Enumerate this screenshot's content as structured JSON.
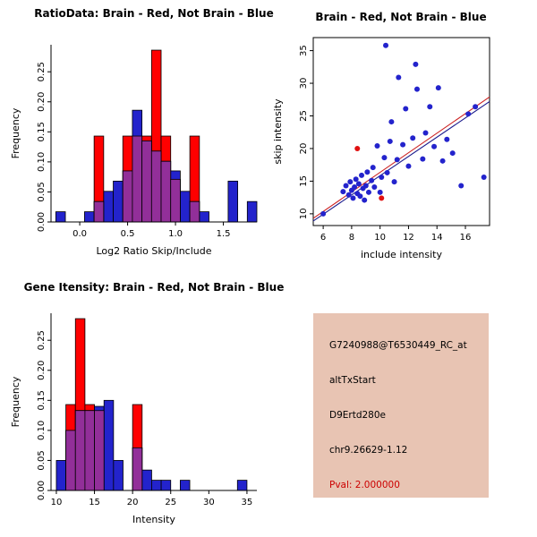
{
  "info_panel": {
    "lines": [
      "G7240988@T6530449_RC_at",
      "altTxStart",
      "D9Ertd280e",
      "chr9.26629-1.12"
    ],
    "pval": "Pval: 2.000000",
    "bg_color": "#e8c4b3",
    "pval_color": "#cc0000",
    "text_color": "#000000"
  },
  "chart_data": [
    {
      "type": "bar",
      "variant": "overlaid-histogram",
      "title": "RatioData: Brain - Red, Not Brain - Blue",
      "xlabel": "Log2 Ratio Skip/Include",
      "ylabel": "Frequency",
      "bin_start": -0.25,
      "bin_width": 0.1,
      "xlim": [
        -0.3,
        1.85
      ],
      "ylim": [
        0,
        0.295
      ],
      "xticks": [
        0,
        0.5,
        1,
        1.5
      ],
      "xtick_labels": [
        "0.0",
        "0.5",
        "1.0",
        "1.5"
      ],
      "yticks": [
        0,
        0.05,
        0.1,
        0.15,
        0.2,
        0.25
      ],
      "ytick_labels": [
        "0.00",
        "0.05",
        "0.10",
        "0.15",
        "0.20",
        "0.25"
      ],
      "overlap_color": "#922f99",
      "grid": false,
      "legend": "none",
      "series": [
        {
          "name": "Brain",
          "color": "#ff0000",
          "values": [
            0,
            0,
            0,
            0,
            0.143,
            0,
            0,
            0.143,
            0.143,
            0.143,
            0.286,
            0.143,
            0.071,
            0,
            0.143,
            0,
            0,
            0,
            0,
            0,
            0
          ]
        },
        {
          "name": "Not Brain",
          "color": "#2323cc",
          "values": [
            0.017,
            0,
            0,
            0.017,
            0.034,
            0.051,
            0.068,
            0.085,
            0.186,
            0.135,
            0.118,
            0.101,
            0.085,
            0.051,
            0.034,
            0.017,
            0,
            0,
            0.068,
            0,
            0.034
          ]
        }
      ]
    },
    {
      "type": "scatter",
      "title": "Brain - Red, Not Brain - Blue",
      "xlabel": "include intensity",
      "ylabel": "skip intensity",
      "xlim": [
        5.3,
        17.7
      ],
      "ylim": [
        8.2,
        37
      ],
      "xticks": [
        6,
        8,
        10,
        12,
        14,
        16
      ],
      "xtick_labels": [
        "6",
        "8",
        "10",
        "12",
        "14",
        "16"
      ],
      "yticks": [
        10,
        15,
        20,
        25,
        30,
        35
      ],
      "ytick_labels": [
        "10",
        "15",
        "20",
        "25",
        "30",
        "35"
      ],
      "grid": false,
      "legend": "none",
      "series": [
        {
          "name": "Not Brain",
          "color": "#2323cc",
          "points": [
            [
              6.0,
              10.0
            ],
            [
              7.4,
              13.4
            ],
            [
              7.6,
              14.3
            ],
            [
              7.8,
              12.9
            ],
            [
              7.9,
              14.9
            ],
            [
              8.0,
              13.6
            ],
            [
              8.1,
              12.4
            ],
            [
              8.2,
              14.1
            ],
            [
              8.3,
              15.3
            ],
            [
              8.4,
              13.1
            ],
            [
              8.5,
              14.6
            ],
            [
              8.6,
              12.7
            ],
            [
              8.7,
              15.9
            ],
            [
              8.8,
              13.9
            ],
            [
              8.9,
              12.1
            ],
            [
              9.0,
              14.3
            ],
            [
              9.1,
              16.4
            ],
            [
              9.2,
              13.3
            ],
            [
              9.4,
              15.1
            ],
            [
              9.5,
              17.1
            ],
            [
              9.6,
              14.1
            ],
            [
              9.8,
              20.4
            ],
            [
              10.0,
              13.3
            ],
            [
              10.1,
              15.6
            ],
            [
              10.3,
              18.6
            ],
            [
              10.4,
              35.8
            ],
            [
              10.5,
              16.3
            ],
            [
              10.7,
              21.1
            ],
            [
              10.8,
              24.1
            ],
            [
              11.0,
              14.9
            ],
            [
              11.2,
              18.3
            ],
            [
              11.3,
              30.9
            ],
            [
              11.6,
              20.6
            ],
            [
              11.8,
              26.1
            ],
            [
              12.0,
              17.3
            ],
            [
              12.3,
              21.6
            ],
            [
              12.5,
              32.9
            ],
            [
              12.6,
              29.1
            ],
            [
              13.0,
              18.4
            ],
            [
              13.2,
              22.4
            ],
            [
              13.5,
              26.4
            ],
            [
              13.8,
              20.3
            ],
            [
              14.1,
              29.3
            ],
            [
              14.4,
              18.1
            ],
            [
              14.7,
              21.4
            ],
            [
              15.1,
              19.3
            ],
            [
              15.7,
              14.3
            ],
            [
              16.2,
              25.3
            ],
            [
              16.7,
              26.4
            ],
            [
              17.3,
              15.6
            ]
          ]
        },
        {
          "name": "Brain",
          "color": "#e01010",
          "points": [
            [
              8.4,
              20.0
            ],
            [
              10.1,
              12.4
            ]
          ]
        }
      ],
      "lines": [
        {
          "color": "#cc2020",
          "x1": 5.3,
          "y1": 9.3,
          "x2": 17.7,
          "y2": 27.9
        },
        {
          "color": "#1a1a8c",
          "x1": 5.3,
          "y1": 8.9,
          "x2": 17.7,
          "y2": 27.2
        }
      ]
    },
    {
      "type": "bar",
      "variant": "overlaid-histogram",
      "title": "Gene Itensity: Brain - Red, Not Brain - Blue",
      "xlabel": "Intensity",
      "ylabel": "Frequency",
      "bin_start": 10,
      "bin_width": 1.25,
      "xlim": [
        9.3,
        36.3
      ],
      "ylim": [
        0,
        0.295
      ],
      "xticks": [
        10,
        15,
        20,
        25,
        30,
        35
      ],
      "xtick_labels": [
        "10",
        "15",
        "20",
        "25",
        "30",
        "35"
      ],
      "yticks": [
        0,
        0.05,
        0.1,
        0.15,
        0.2,
        0.25
      ],
      "ytick_labels": [
        "0.00",
        "0.05",
        "0.10",
        "0.15",
        "0.20",
        "0.25"
      ],
      "overlap_color": "#922f99",
      "grid": false,
      "legend": "none",
      "series": [
        {
          "name": "Brain",
          "color": "#ff0000",
          "values": [
            0,
            0.143,
            0.286,
            0.143,
            0.133,
            0,
            0,
            0,
            0.143,
            0,
            0,
            0,
            0,
            0,
            0,
            0,
            0,
            0,
            0,
            0
          ]
        },
        {
          "name": "Not Brain",
          "color": "#2323cc",
          "values": [
            0.05,
            0.1,
            0.133,
            0.133,
            0.14,
            0.15,
            0.05,
            0,
            0.071,
            0.034,
            0.017,
            0.017,
            0,
            0.017,
            0,
            0,
            0,
            0,
            0,
            0.017
          ]
        }
      ]
    }
  ]
}
